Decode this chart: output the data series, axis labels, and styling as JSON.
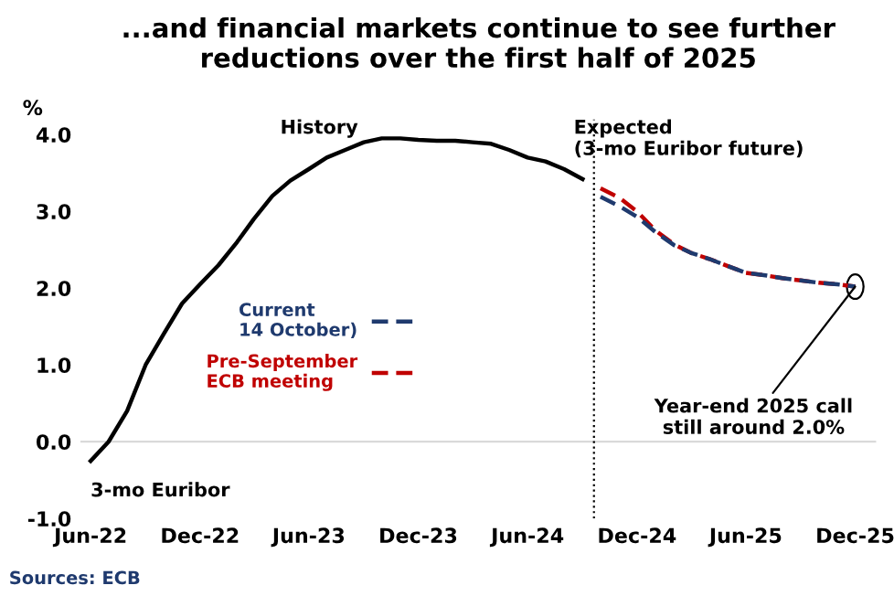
{
  "chart_data": {
    "type": "line",
    "title": "...and financial markets continue to see further reductions over the first half of 2025",
    "ylabel": "%",
    "series": [
      {
        "name": null,
        "color": "#000000",
        "line_style": "solid",
        "x": [
          "2022-06",
          "2022-07",
          "2022-08",
          "2022-09",
          "2022-10",
          "2022-11",
          "2022-12",
          "2023-01",
          "2023-02",
          "2023-03",
          "2023-04",
          "2023-05",
          "2023-06",
          "2023-07",
          "2023-08",
          "2023-09",
          "2023-10",
          "2023-11",
          "2023-12",
          "2024-01",
          "2024-02",
          "2024-03",
          "2024-04",
          "2024-05",
          "2024-06",
          "2024-07",
          "2024-08",
          "2024-09"
        ],
        "values": [
          -0.25,
          0.0,
          0.4,
          1.0,
          1.4,
          1.8,
          2.05,
          2.3,
          2.6,
          2.9,
          3.2,
          3.4,
          3.55,
          3.7,
          3.8,
          3.9,
          3.95,
          3.95,
          3.93,
          3.92,
          3.92,
          3.9,
          3.88,
          3.8,
          3.7,
          3.65,
          3.55,
          3.42
        ]
      },
      {
        "name": "Pre-September\nECB meeting",
        "color": "#c00000",
        "line_style": "dashed",
        "x": [
          "2024-10",
          "2024-11",
          "2024-12",
          "2025-01",
          "2025-02",
          "2025-03",
          "2025-04",
          "2025-05",
          "2025-06",
          "2025-07",
          "2025-08",
          "2025-09",
          "2025-10",
          "2025-11",
          "2025-12"
        ],
        "values": [
          3.3,
          3.18,
          3.0,
          2.75,
          2.57,
          2.46,
          2.38,
          2.29,
          2.2,
          2.17,
          2.13,
          2.1,
          2.07,
          2.05,
          2.02
        ]
      },
      {
        "name": "Current\n14 October)",
        "color": "#1f3a6e",
        "line_style": "dashed",
        "x": [
          "2024-10",
          "2024-11",
          "2024-12",
          "2025-01",
          "2025-02",
          "2025-03",
          "2025-04",
          "2025-05",
          "2025-06",
          "2025-07",
          "2025-08",
          "2025-09",
          "2025-10",
          "2025-11",
          "2025-12"
        ],
        "values": [
          3.19,
          3.07,
          2.93,
          2.73,
          2.56,
          2.46,
          2.38,
          2.29,
          2.2,
          2.17,
          2.13,
          2.1,
          2.07,
          2.05,
          2.02
        ]
      }
    ],
    "xlim": [
      "2022-05-15",
      "2026-01-05"
    ],
    "xticks": [
      {
        "value": "2022-06",
        "label": "Jun-22"
      },
      {
        "value": "2022-12",
        "label": "Dec-22"
      },
      {
        "value": "2023-06",
        "label": "Jun-23"
      },
      {
        "value": "2023-12",
        "label": "Dec-23"
      },
      {
        "value": "2024-06",
        "label": "Jun-24"
      },
      {
        "value": "2024-12",
        "label": "Dec-24"
      },
      {
        "value": "2025-06",
        "label": "Jun-25"
      },
      {
        "value": "2025-12",
        "label": "Dec-25"
      }
    ],
    "ylim": [
      -1.0,
      4.2
    ],
    "yticks": [
      {
        "value": -1,
        "label": "-1.0"
      },
      {
        "value": 0,
        "label": "0.0"
      },
      {
        "value": 1,
        "label": "1.0"
      },
      {
        "value": 2,
        "label": "2.0"
      },
      {
        "value": 3,
        "label": "3.0"
      },
      {
        "value": 4,
        "label": "4.0"
      }
    ],
    "ref_lines": [
      {
        "axis": "y",
        "value": 0,
        "label": null,
        "color": "#d9d9d9",
        "line_style": "solid"
      },
      {
        "axis": "x",
        "value": "2024-09-20",
        "label": null,
        "color": "#000000",
        "line_style": "dotted"
      }
    ],
    "annotations": [
      {
        "text": "3-mo Euribor",
        "x": "2022-06",
        "y": -0.25
      },
      "History",
      "Expected\n(3-mo Euribor future)",
      {
        "text": "Year-end 2025 call\nstill around 2.0%",
        "x": "2025-12",
        "y": 2.02
      },
      "Sources: ECB"
    ],
    "grid": false,
    "legend": "center",
    "marker": "none"
  }
}
